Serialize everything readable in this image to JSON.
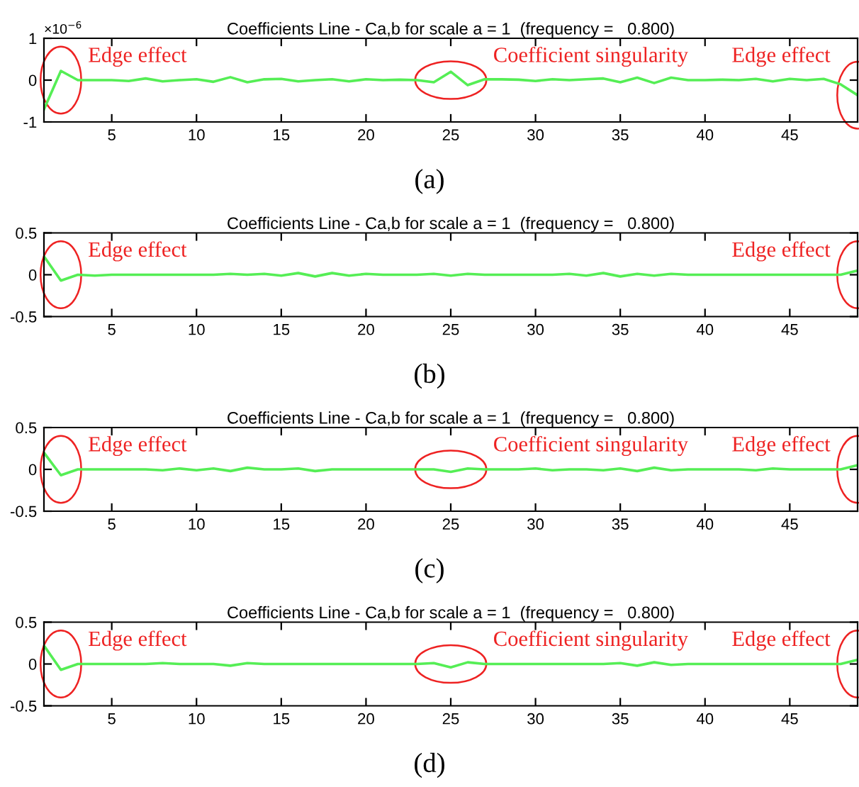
{
  "chart_data": [
    {
      "type": "line",
      "title": "Coefficients Line - Ca,b for scale a = 1  (frequency =   0.800)",
      "x": [
        1,
        2,
        3,
        4,
        5,
        6,
        7,
        8,
        9,
        10,
        11,
        12,
        13,
        14,
        15,
        16,
        17,
        18,
        19,
        20,
        21,
        22,
        23,
        24,
        25,
        26,
        27,
        28,
        29,
        30,
        31,
        32,
        33,
        34,
        35,
        36,
        37,
        38,
        39,
        40,
        41,
        42,
        43,
        44,
        45,
        46,
        47,
        48,
        49
      ],
      "series": [
        {
          "color": "#55ee55",
          "values": [
            -0.7,
            0.22,
            0,
            0,
            0,
            -0.02,
            0.04,
            -0.03,
            0,
            0.02,
            -0.04,
            0.07,
            -0.05,
            0.02,
            0.03,
            -0.03,
            0,
            0.02,
            -0.03,
            0.02,
            0,
            0.01,
            0,
            -0.05,
            0.2,
            -0.12,
            0.02,
            0.02,
            0.01,
            -0.02,
            0.02,
            0,
            0.02,
            0.04,
            -0.05,
            0.06,
            -0.07,
            0.06,
            0,
            0,
            0.01,
            0,
            0.03,
            -0.03,
            0.03,
            0,
            0.03,
            -0.1,
            -0.36
          ]
        }
      ],
      "xlim": [
        1,
        49
      ],
      "ylim": [
        -1,
        1
      ],
      "xticks": [
        5,
        10,
        15,
        20,
        25,
        30,
        35,
        40,
        45
      ],
      "yticks": [
        -1,
        0,
        1
      ],
      "grid": false,
      "annotations": [
        {
          "text": "Edge effect",
          "x": 2,
          "y": 0
        },
        {
          "text": "Coefficient singularity",
          "x": 25,
          "y": 0
        },
        {
          "text": "Edge effect",
          "x": 49,
          "y": -0.36
        },
        "×10$^{−6}$",
        "(a)"
      ]
    },
    {
      "type": "line",
      "title": "Coefficients Line - Ca,b for scale a = 1  (frequency =   0.800)",
      "x": [
        1,
        2,
        3,
        4,
        5,
        6,
        7,
        8,
        9,
        10,
        11,
        12,
        13,
        14,
        15,
        16,
        17,
        18,
        19,
        20,
        21,
        22,
        23,
        24,
        25,
        26,
        27,
        28,
        29,
        30,
        31,
        32,
        33,
        34,
        35,
        36,
        37,
        38,
        39,
        40,
        41,
        42,
        43,
        44,
        45,
        46,
        47,
        48,
        49
      ],
      "series": [
        {
          "color": "#55ee55",
          "values": [
            0.22,
            -0.07,
            0,
            -0.01,
            0,
            0,
            0,
            0,
            0,
            0,
            0,
            0.01,
            0,
            0.01,
            -0.01,
            0.02,
            -0.02,
            0.02,
            -0.01,
            0.01,
            0,
            0,
            0,
            0.01,
            -0.01,
            0.01,
            0,
            0,
            0,
            0,
            0,
            0.01,
            -0.01,
            0.02,
            -0.02,
            0.01,
            -0.01,
            0.01,
            0,
            0,
            0,
            0,
            0,
            0,
            0,
            0,
            0,
            0,
            0.05
          ]
        }
      ],
      "xlim": [
        1,
        49
      ],
      "ylim": [
        -0.5,
        0.5
      ],
      "xticks": [
        5,
        10,
        15,
        20,
        25,
        30,
        35,
        40,
        45
      ],
      "yticks": [
        -0.5,
        0,
        0.5
      ],
      "grid": false,
      "annotations": [
        {
          "text": "Edge effect",
          "x": 2,
          "y": 0
        },
        {
          "text": "Edge effect",
          "x": 49,
          "y": 0
        },
        "(b)"
      ]
    },
    {
      "type": "line",
      "title": "Coefficients Line - Ca,b for scale a = 1  (frequency =   0.800)",
      "x": [
        1,
        2,
        3,
        4,
        5,
        6,
        7,
        8,
        9,
        10,
        11,
        12,
        13,
        14,
        15,
        16,
        17,
        18,
        19,
        20,
        21,
        22,
        23,
        24,
        25,
        26,
        27,
        28,
        29,
        30,
        31,
        32,
        33,
        34,
        35,
        36,
        37,
        38,
        39,
        40,
        41,
        42,
        43,
        44,
        45,
        46,
        47,
        48,
        49
      ],
      "series": [
        {
          "color": "#55ee55",
          "values": [
            0.2,
            -0.07,
            0,
            0,
            0,
            0,
            0,
            -0.01,
            0.01,
            -0.01,
            0.01,
            -0.02,
            0.02,
            0,
            0,
            0.01,
            -0.02,
            0,
            0,
            0,
            0,
            0,
            0,
            0,
            -0.03,
            0.01,
            0,
            0,
            0,
            0.01,
            -0.01,
            0,
            0,
            -0.01,
            0.01,
            -0.02,
            0.02,
            -0.01,
            0,
            0,
            0,
            0,
            -0.01,
            0.01,
            0,
            0,
            0,
            0,
            0.05
          ]
        }
      ],
      "xlim": [
        1,
        49
      ],
      "ylim": [
        -0.5,
        0.5
      ],
      "xticks": [
        5,
        10,
        15,
        20,
        25,
        30,
        35,
        40,
        45
      ],
      "yticks": [
        -0.5,
        0,
        0.5
      ],
      "grid": false,
      "annotations": [
        {
          "text": "Edge effect",
          "x": 2,
          "y": 0
        },
        {
          "text": "Coefficient singularity",
          "x": 25,
          "y": 0
        },
        {
          "text": "Edge effect",
          "x": 49,
          "y": 0
        },
        "(c)"
      ]
    },
    {
      "type": "line",
      "title": "Coefficients Line - Ca,b for scale a = 1  (frequency =   0.800)",
      "x": [
        1,
        2,
        3,
        4,
        5,
        6,
        7,
        8,
        9,
        10,
        11,
        12,
        13,
        14,
        15,
        16,
        17,
        18,
        19,
        20,
        21,
        22,
        23,
        24,
        25,
        26,
        27,
        28,
        29,
        30,
        31,
        32,
        33,
        34,
        35,
        36,
        37,
        38,
        39,
        40,
        41,
        42,
        43,
        44,
        45,
        46,
        47,
        48,
        49
      ],
      "series": [
        {
          "color": "#55ee55",
          "values": [
            0.22,
            -0.07,
            0,
            0,
            0,
            0,
            0,
            0.01,
            0,
            0,
            0,
            -0.02,
            0.01,
            0,
            0,
            0,
            0,
            0,
            0,
            0,
            0,
            0,
            0,
            0.01,
            -0.04,
            0.02,
            0,
            0,
            0,
            0,
            0,
            0,
            0,
            0,
            0.01,
            -0.02,
            0.02,
            -0.01,
            0,
            0,
            0,
            0,
            0,
            0,
            0,
            0,
            0,
            0,
            0.05
          ]
        }
      ],
      "xlim": [
        1,
        49
      ],
      "ylim": [
        -0.5,
        0.5
      ],
      "xticks": [
        5,
        10,
        15,
        20,
        25,
        30,
        35,
        40,
        45
      ],
      "yticks": [
        -0.5,
        0,
        0.5
      ],
      "grid": false,
      "annotations": [
        {
          "text": "Edge effect",
          "x": 2,
          "y": 0
        },
        {
          "text": "Coefficient singularity",
          "x": 25,
          "y": 0
        },
        {
          "text": "Edge effect",
          "x": 49,
          "y": 0
        },
        "(d)"
      ]
    }
  ]
}
